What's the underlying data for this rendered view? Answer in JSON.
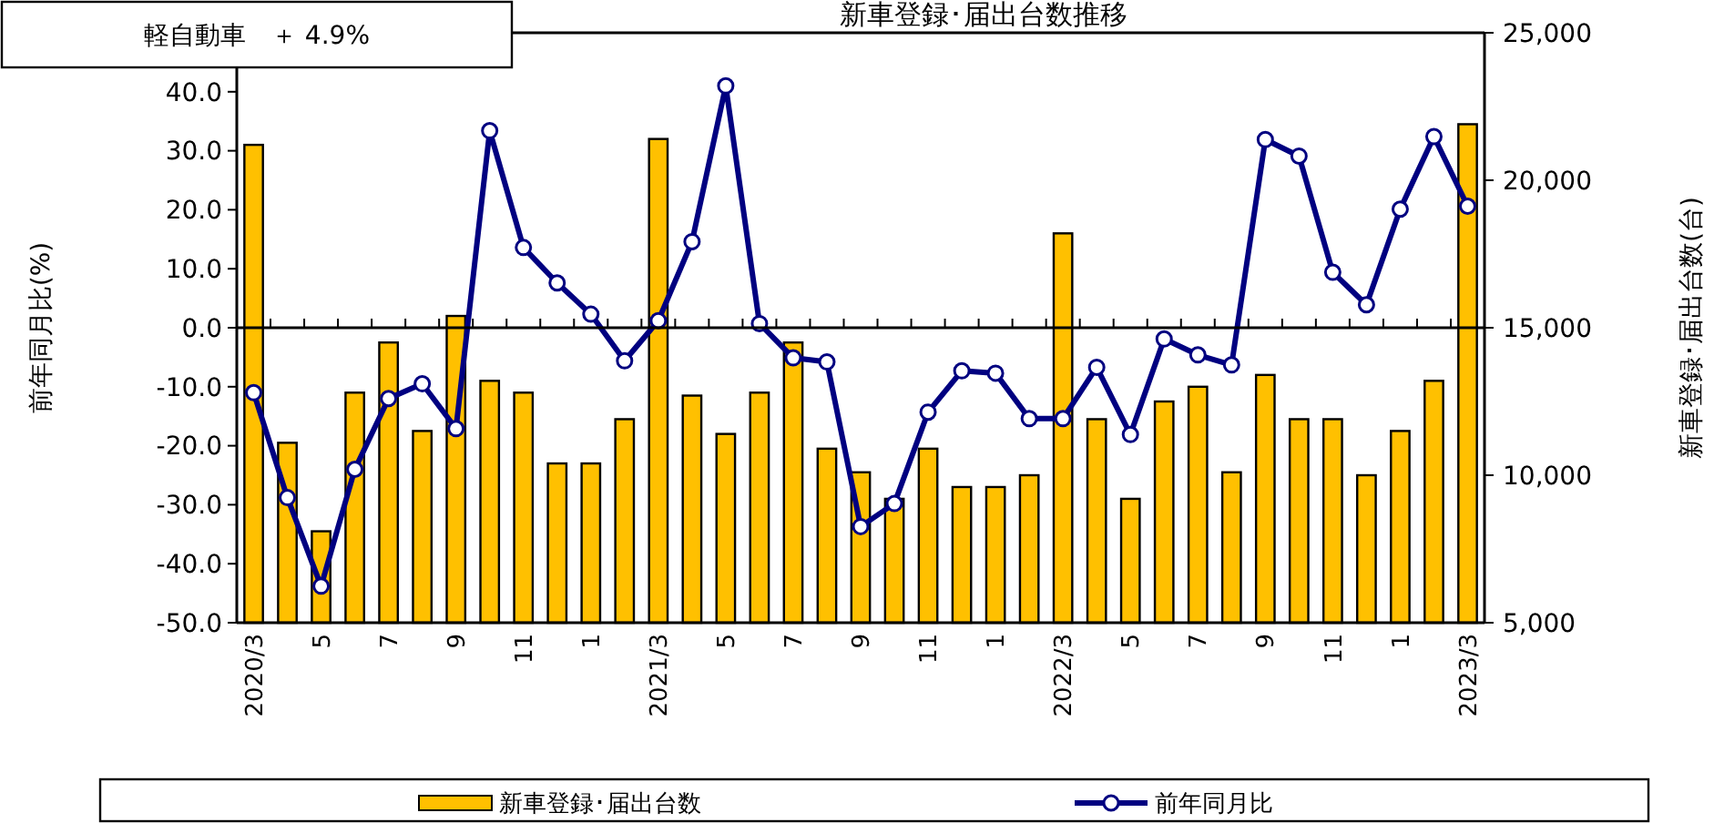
{
  "chart_data": {
    "type": "bar",
    "title": "新車登録･届出台数推移",
    "annotations": [
      "軽自動車　＋ 4.9%"
    ],
    "ylabel": "前年同月比(%)",
    "y2label": "新車登録･届出台数(台)",
    "categories": [
      "2020/3",
      null,
      "5",
      null,
      "7",
      null,
      "9",
      null,
      "11",
      null,
      "1",
      null,
      "2021/3",
      null,
      "5",
      null,
      "7",
      null,
      "9",
      null,
      "11",
      null,
      "1",
      null,
      "2022/3",
      null,
      "5",
      null,
      "7",
      null,
      "9",
      null,
      "11",
      null,
      "1",
      null,
      "2023/3"
    ],
    "series": [
      {
        "name": "新車登録･届出台数",
        "axis": "y2",
        "color": "#ffc000",
        "values": [
          21200,
          11100,
          8100,
          12800,
          14500,
          11500,
          15400,
          13200,
          12800,
          10400,
          10400,
          11900,
          21400,
          12700,
          11400,
          12800,
          14500,
          10900,
          10100,
          9200,
          10900,
          9600,
          9600,
          10000,
          18200,
          11900,
          9200,
          12500,
          13000,
          10100,
          13400,
          11900,
          11900,
          10000,
          11500,
          13200,
          21900
        ]
      },
      {
        "name": "前年同月比",
        "type": "line",
        "axis": "y",
        "color": "#000080",
        "marker": "circle",
        "values": [
          -11.0,
          -28.8,
          -43.8,
          -24.0,
          -12.0,
          -9.5,
          -17.1,
          33.4,
          13.6,
          7.6,
          2.3,
          -5.6,
          1.2,
          14.6,
          41.0,
          0.7,
          -5.1,
          -5.8,
          -33.7,
          -29.8,
          -14.3,
          -7.3,
          -7.7,
          -15.4,
          -15.4,
          -6.7,
          -18.1,
          -1.9,
          -4.6,
          -6.3,
          31.9,
          29.1,
          9.4,
          3.9,
          20.1,
          32.4,
          20.6
        ]
      }
    ],
    "ylim": [
      -50,
      50
    ],
    "yticks": [
      {
        "value": -50,
        "label": "-50.0"
      },
      {
        "value": -40,
        "label": "-40.0"
      },
      {
        "value": -30,
        "label": "-30.0"
      },
      {
        "value": -20,
        "label": "-20.0"
      },
      {
        "value": -10,
        "label": "-10.0"
      },
      {
        "value": 0,
        "label": "0.0"
      },
      {
        "value": 10,
        "label": "10.0"
      },
      {
        "value": 20,
        "label": "20.0"
      },
      {
        "value": 30,
        "label": "30.0"
      },
      {
        "value": 40,
        "label": "40.0"
      }
    ],
    "y2lim": [
      5000,
      25000
    ],
    "y2ticks": [
      {
        "value": 5000,
        "label": "5,000"
      },
      {
        "value": 10000,
        "label": "10,000"
      },
      {
        "value": 15000,
        "label": "15,000"
      },
      {
        "value": 20000,
        "label": "20,000"
      },
      {
        "value": 25000,
        "label": "25,000"
      }
    ],
    "legend": "bottom"
  }
}
